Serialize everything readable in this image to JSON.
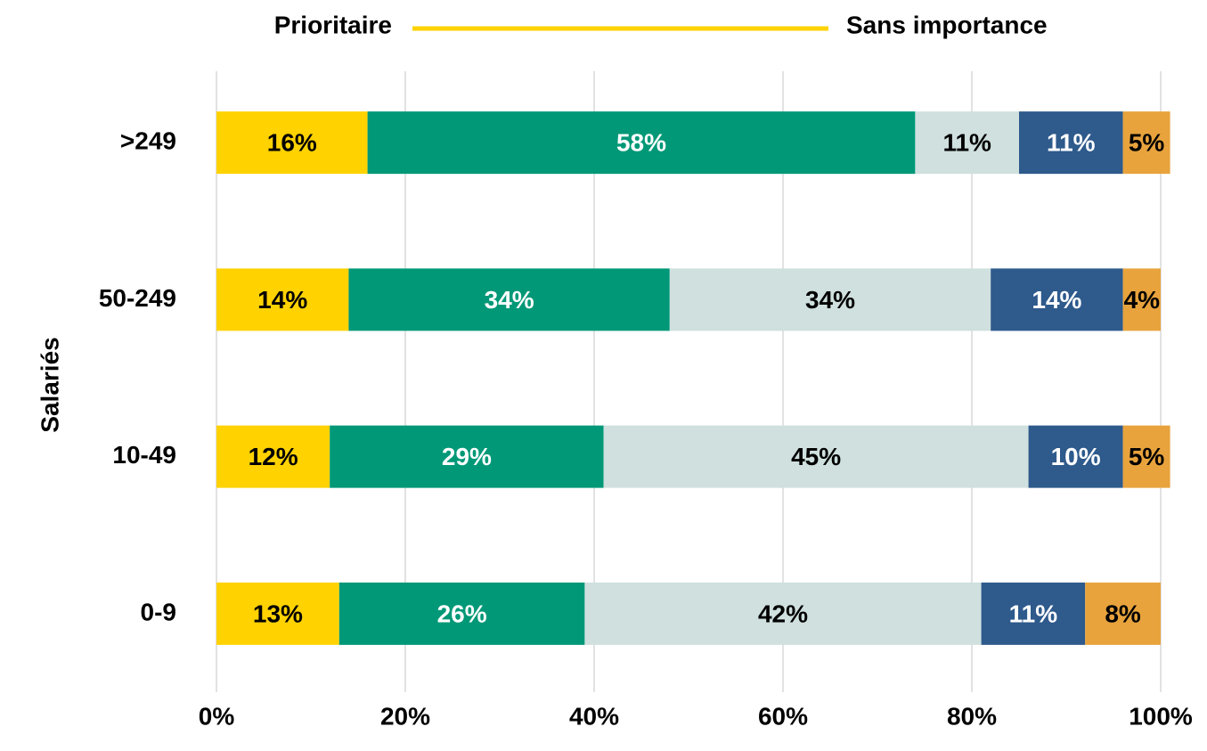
{
  "chart_data": {
    "type": "stacked_barh",
    "legend_start": "Prioritaire",
    "legend_end": "Sans importance",
    "legend_color": "#FFD200",
    "ylabel": "Salariés",
    "categories": [
      ">249",
      "50-249",
      "10-49",
      "0-9"
    ],
    "series": [
      {
        "color": "#FFD200",
        "label_color": "#000000",
        "values": [
          16,
          14,
          12,
          13
        ],
        "value_labels": [
          "16%",
          "14%",
          "12%",
          "13%"
        ]
      },
      {
        "color": "#009877",
        "label_color": "#FFFFFF",
        "values": [
          58,
          34,
          29,
          26
        ],
        "value_labels": [
          "58%",
          "34%",
          "29%",
          "26%"
        ]
      },
      {
        "color": "#CFE0DE",
        "label_color": "#000000",
        "values": [
          11,
          34,
          45,
          42
        ],
        "value_labels": [
          "11%",
          "34%",
          "45%",
          "42%"
        ]
      },
      {
        "color": "#2E5A8C",
        "label_color": "#FFFFFF",
        "values": [
          11,
          14,
          10,
          11
        ],
        "value_labels": [
          "11%",
          "14%",
          "10%",
          "11%"
        ]
      },
      {
        "color": "#E8A33D",
        "label_color": "#000000",
        "values": [
          5,
          4,
          5,
          8
        ],
        "value_labels": [
          "5%",
          "4%",
          "5%",
          "8%"
        ]
      }
    ],
    "xlim": [
      0,
      100
    ],
    "xticks": [
      {
        "value": 0,
        "label": "0%"
      },
      {
        "value": 20,
        "label": "20%"
      },
      {
        "value": 40,
        "label": "40%"
      },
      {
        "value": 60,
        "label": "60%"
      },
      {
        "value": 80,
        "label": "80%"
      },
      {
        "value": 100,
        "label": "100%"
      }
    ],
    "grid": true
  }
}
